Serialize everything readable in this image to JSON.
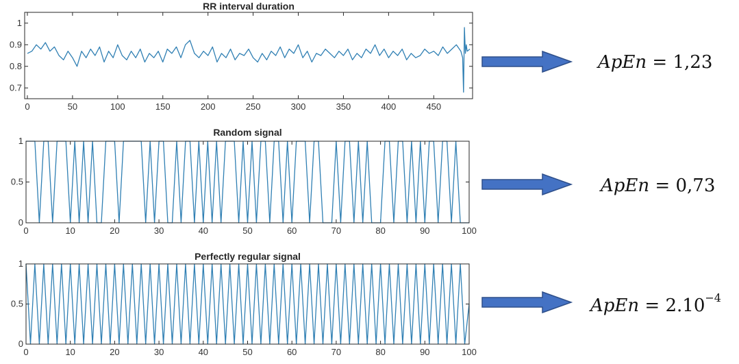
{
  "chart_data": [
    {
      "type": "line",
      "title": "RR interval duration",
      "xlabel": "",
      "ylabel": "",
      "xlim": [
        -3,
        493
      ],
      "ylim": [
        0.65,
        1.05
      ],
      "xticks": [
        0,
        50,
        100,
        150,
        200,
        250,
        300,
        350,
        400,
        450
      ],
      "yticks": [
        0.7,
        0.8,
        0.9,
        1
      ],
      "ytick_labels": [
        "0.7",
        "0.8",
        "0.9",
        "1"
      ],
      "series": [
        {
          "color": "#2f7fb3",
          "x": [
            0,
            5,
            10,
            15,
            20,
            25,
            30,
            35,
            40,
            45,
            50,
            55,
            60,
            65,
            70,
            75,
            80,
            85,
            90,
            95,
            100,
            105,
            110,
            115,
            120,
            125,
            130,
            135,
            140,
            145,
            150,
            155,
            160,
            165,
            170,
            175,
            180,
            185,
            190,
            195,
            200,
            205,
            210,
            215,
            220,
            225,
            230,
            235,
            240,
            245,
            250,
            255,
            260,
            265,
            270,
            275,
            280,
            285,
            290,
            295,
            300,
            305,
            310,
            315,
            320,
            325,
            330,
            335,
            340,
            345,
            350,
            355,
            360,
            365,
            370,
            375,
            380,
            385,
            390,
            395,
            400,
            405,
            410,
            415,
            420,
            425,
            430,
            435,
            440,
            445,
            450,
            455,
            460,
            465,
            470,
            475,
            480,
            482,
            483,
            484,
            485,
            486,
            487,
            490
          ],
          "y": [
            0.86,
            0.87,
            0.9,
            0.88,
            0.91,
            0.87,
            0.89,
            0.85,
            0.83,
            0.87,
            0.84,
            0.8,
            0.87,
            0.84,
            0.88,
            0.85,
            0.89,
            0.82,
            0.87,
            0.84,
            0.9,
            0.85,
            0.83,
            0.87,
            0.84,
            0.88,
            0.82,
            0.86,
            0.84,
            0.87,
            0.82,
            0.88,
            0.86,
            0.89,
            0.84,
            0.9,
            0.92,
            0.86,
            0.84,
            0.87,
            0.85,
            0.89,
            0.82,
            0.86,
            0.84,
            0.88,
            0.83,
            0.86,
            0.85,
            0.88,
            0.84,
            0.82,
            0.86,
            0.83,
            0.87,
            0.85,
            0.89,
            0.84,
            0.88,
            0.86,
            0.9,
            0.84,
            0.87,
            0.82,
            0.86,
            0.85,
            0.88,
            0.86,
            0.84,
            0.87,
            0.85,
            0.88,
            0.83,
            0.86,
            0.84,
            0.88,
            0.86,
            0.9,
            0.85,
            0.88,
            0.84,
            0.87,
            0.85,
            0.88,
            0.83,
            0.86,
            0.84,
            0.85,
            0.88,
            0.86,
            0.87,
            0.85,
            0.89,
            0.86,
            0.88,
            0.9,
            0.87,
            0.84,
            0.68,
            0.98,
            0.86,
            0.9,
            0.87,
            0.88
          ]
        }
      ]
    },
    {
      "type": "line",
      "title": "Random signal",
      "xlabel": "",
      "ylabel": "",
      "xlim": [
        0,
        100
      ],
      "ylim": [
        0,
        1
      ],
      "xticks": [
        0,
        10,
        20,
        30,
        40,
        50,
        60,
        70,
        80,
        90,
        100
      ],
      "yticks": [
        0,
        0.5,
        1
      ],
      "ytick_labels": [
        "0",
        "0.5",
        "1"
      ],
      "series": [
        {
          "color": "#2f7fb3",
          "x": [
            0,
            1,
            2,
            3,
            4,
            5,
            6,
            7,
            8,
            9,
            10,
            11,
            12,
            13,
            14,
            15,
            16,
            17,
            18,
            19,
            20,
            21,
            22,
            23,
            24,
            25,
            26,
            27,
            28,
            29,
            30,
            31,
            32,
            33,
            34,
            35,
            36,
            37,
            38,
            39,
            40,
            41,
            42,
            43,
            44,
            45,
            46,
            47,
            48,
            49,
            50,
            51,
            52,
            53,
            54,
            55,
            56,
            57,
            58,
            59,
            60,
            61,
            62,
            63,
            64,
            65,
            66,
            67,
            68,
            69,
            70,
            71,
            72,
            73,
            74,
            75,
            76,
            77,
            78,
            79,
            80,
            81,
            82,
            83,
            84,
            85,
            86,
            87,
            88,
            89,
            90,
            91,
            92,
            93,
            94,
            95,
            96,
            97,
            98,
            99,
            100
          ],
          "y": [
            1,
            1,
            1,
            0,
            1,
            1,
            0,
            1,
            1,
            1,
            0,
            1,
            0,
            1,
            0,
            1,
            0,
            0,
            1,
            1,
            1,
            0,
            1,
            1,
            1,
            1,
            1,
            0,
            1,
            0,
            1,
            1,
            0,
            0,
            1,
            0,
            1,
            1,
            0,
            1,
            0,
            1,
            0,
            1,
            0,
            1,
            1,
            1,
            0,
            1,
            0,
            1,
            0,
            1,
            1,
            0,
            1,
            1,
            0,
            1,
            0,
            1,
            1,
            1,
            0,
            1,
            1,
            0,
            0,
            0,
            1,
            0,
            1,
            1,
            0,
            1,
            0,
            1,
            0,
            0,
            0,
            1,
            1,
            0,
            1,
            1,
            0,
            1,
            0,
            1,
            0,
            1,
            1,
            0,
            1,
            1,
            0,
            1,
            0,
            0,
            0
          ]
        }
      ]
    },
    {
      "type": "line",
      "title": "Perfectly regular signal",
      "xlabel": "",
      "ylabel": "",
      "xlim": [
        0,
        100
      ],
      "ylim": [
        0,
        1
      ],
      "xticks": [
        0,
        10,
        20,
        30,
        40,
        50,
        60,
        70,
        80,
        90,
        100
      ],
      "yticks": [
        0,
        0.5,
        1
      ],
      "ytick_labels": [
        "0",
        "0.5",
        "1"
      ],
      "series": [
        {
          "color": "#2f7fb3",
          "x": [
            0,
            1,
            2,
            3,
            4,
            5,
            6,
            7,
            8,
            9,
            10,
            11,
            12,
            13,
            14,
            15,
            16,
            17,
            18,
            19,
            20,
            21,
            22,
            23,
            24,
            25,
            26,
            27,
            28,
            29,
            30,
            31,
            32,
            33,
            34,
            35,
            36,
            37,
            38,
            39,
            40,
            41,
            42,
            43,
            44,
            45,
            46,
            47,
            48,
            49,
            50,
            51,
            52,
            53,
            54,
            55,
            56,
            57,
            58,
            59,
            60,
            61,
            62,
            63,
            64,
            65,
            66,
            67,
            68,
            69,
            70,
            71,
            72,
            73,
            74,
            75,
            76,
            77,
            78,
            79,
            80,
            81,
            82,
            83,
            84,
            85,
            86,
            87,
            88,
            89,
            90,
            91,
            92,
            93,
            94,
            95,
            96,
            97,
            98,
            99,
            100
          ],
          "y": [
            1,
            0,
            1,
            0,
            1,
            0,
            1,
            0,
            1,
            0,
            1,
            0,
            1,
            0,
            1,
            0,
            1,
            0,
            1,
            0,
            1,
            0,
            1,
            0,
            1,
            0,
            1,
            0,
            1,
            0,
            1,
            0,
            1,
            0,
            1,
            0,
            1,
            0,
            1,
            0,
            1,
            0,
            1,
            0,
            1,
            0,
            1,
            0,
            1,
            0,
            1,
            0,
            1,
            0,
            1,
            0,
            1,
            0,
            1,
            0,
            1,
            0,
            1,
            0,
            1,
            0,
            1,
            0,
            1,
            0,
            1,
            0,
            1,
            0,
            1,
            0,
            1,
            0,
            1,
            0,
            1,
            0,
            1,
            0,
            1,
            0,
            1,
            0,
            1,
            0,
            1,
            0,
            1,
            0,
            1,
            0,
            1,
            0,
            1,
            0,
            0.5
          ]
        }
      ]
    }
  ],
  "annotations": [
    {
      "lhs": "ApEn",
      "rhs": "= 1,23",
      "exponent": "",
      "arrow_color": "#4472c4"
    },
    {
      "lhs": "ApEn",
      "rhs": "= 0,73",
      "exponent": "",
      "arrow_color": "#4472c4"
    },
    {
      "lhs": "ApEn",
      "rhs": "= 2.10",
      "exponent": "−4",
      "arrow_color": "#4472c4"
    }
  ]
}
